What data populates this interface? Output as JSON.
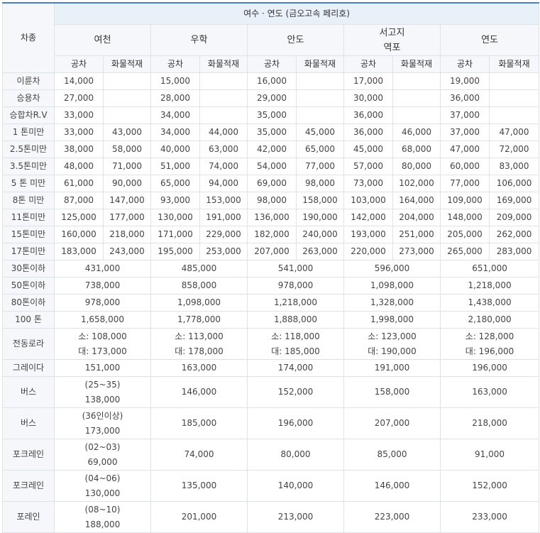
{
  "table": {
    "corner_label": "차종",
    "region_title": "여수 · 연도 (금오고속 페리호)",
    "ports": [
      {
        "lines": [
          "여천"
        ]
      },
      {
        "lines": [
          "우학"
        ]
      },
      {
        "lines": [
          "안도"
        ]
      },
      {
        "lines": [
          "서고지",
          "역포"
        ]
      },
      {
        "lines": [
          "연도"
        ]
      }
    ],
    "sub_headers": [
      "공차",
      "화물적재"
    ],
    "split_rows": [
      {
        "label": "이륜차",
        "values": [
          [
            "14,000",
            ""
          ],
          [
            "15,000",
            ""
          ],
          [
            "16,000",
            ""
          ],
          [
            "17,000",
            ""
          ],
          [
            "19,000",
            ""
          ]
        ]
      },
      {
        "label": "승용차",
        "values": [
          [
            "27,000",
            ""
          ],
          [
            "28,000",
            ""
          ],
          [
            "29,000",
            ""
          ],
          [
            "30,000",
            ""
          ],
          [
            "36,000",
            ""
          ]
        ]
      },
      {
        "label": "승합차R.V",
        "values": [
          [
            "33,000",
            ""
          ],
          [
            "34,000",
            ""
          ],
          [
            "35,000",
            ""
          ],
          [
            "36,000",
            ""
          ],
          [
            "37,000",
            ""
          ]
        ]
      },
      {
        "label": "1 톤미만",
        "values": [
          [
            "33,000",
            "43,000"
          ],
          [
            "34,000",
            "44,000"
          ],
          [
            "35,000",
            "45,000"
          ],
          [
            "36,000",
            "46,000"
          ],
          [
            "37,000",
            "47,000"
          ]
        ]
      },
      {
        "label": "2.5톤미만",
        "values": [
          [
            "38,000",
            "58,000"
          ],
          [
            "40,000",
            "63,000"
          ],
          [
            "42,000",
            "65,000"
          ],
          [
            "45,000",
            "68,000"
          ],
          [
            "47,000",
            "72,000"
          ]
        ]
      },
      {
        "label": "3.5톤미만",
        "values": [
          [
            "48,000",
            "71,000"
          ],
          [
            "51,000",
            "74,000"
          ],
          [
            "54,000",
            "77,000"
          ],
          [
            "57,000",
            "80,000"
          ],
          [
            "60,000",
            "83,000"
          ]
        ]
      },
      {
        "label": "5 톤 미만",
        "values": [
          [
            "61,000",
            "90,000"
          ],
          [
            "65,000",
            "94,000"
          ],
          [
            "69,000",
            "98,000"
          ],
          [
            "73,000",
            "102,000"
          ],
          [
            "77,000",
            "106,000"
          ]
        ]
      },
      {
        "label": "8톤 미만",
        "values": [
          [
            "87,000",
            "147,000"
          ],
          [
            "93,000",
            "153,000"
          ],
          [
            "98,000",
            "158,000"
          ],
          [
            "103,000",
            "164,000"
          ],
          [
            "109,000",
            "169,000"
          ]
        ]
      },
      {
        "label": "11톤미만",
        "values": [
          [
            "125,000",
            "177,000"
          ],
          [
            "130,000",
            "191,000"
          ],
          [
            "136,000",
            "190,000"
          ],
          [
            "142,000",
            "204,000"
          ],
          [
            "148,000",
            "209,000"
          ]
        ]
      },
      {
        "label": "15톤미만",
        "values": [
          [
            "160,000",
            "218,000"
          ],
          [
            "171,000",
            "229,000"
          ],
          [
            "182,000",
            "240,000"
          ],
          [
            "193,000",
            "251,000"
          ],
          [
            "205,000",
            "262,000"
          ]
        ]
      },
      {
        "label": "17톤미만",
        "values": [
          [
            "183,000",
            "243,000"
          ],
          [
            "195,000",
            "253,000"
          ],
          [
            "207,000",
            "263,000"
          ],
          [
            "220,000",
            "273,000"
          ],
          [
            "265,000",
            "283,000"
          ]
        ]
      }
    ],
    "merged_rows": [
      {
        "label": "30톤이하",
        "tall": false,
        "values": [
          [
            "431,000"
          ],
          [
            "485,000"
          ],
          [
            "541,000"
          ],
          [
            "596,000"
          ],
          [
            "651,000"
          ]
        ]
      },
      {
        "label": "50톤이하",
        "tall": false,
        "values": [
          [
            "738,000"
          ],
          [
            "858,000"
          ],
          [
            "978,000"
          ],
          [
            "1,098,000"
          ],
          [
            "1,218,000"
          ]
        ]
      },
      {
        "label": "80톤이하",
        "tall": false,
        "values": [
          [
            "978,000"
          ],
          [
            "1,098,000"
          ],
          [
            "1,218,000"
          ],
          [
            "1,328,000"
          ],
          [
            "1,438,000"
          ]
        ]
      },
      {
        "label": "100 톤",
        "tall": false,
        "values": [
          [
            "1,658,000"
          ],
          [
            "1,778,000"
          ],
          [
            "1,888,000"
          ],
          [
            "1,998,000"
          ],
          [
            "2,180,000"
          ]
        ]
      },
      {
        "label": "전동로라",
        "tall": true,
        "values": [
          [
            "소: 108,000",
            "대: 173,000"
          ],
          [
            "소: 113,000",
            "대: 178,000"
          ],
          [
            "소: 118,000",
            "대: 185,000"
          ],
          [
            "소: 123,000",
            "대: 190,000"
          ],
          [
            "소: 128,000",
            "대: 196,000"
          ]
        ]
      },
      {
        "label": "그레이다",
        "tall": false,
        "values": [
          [
            "151,000"
          ],
          [
            "163,000"
          ],
          [
            "174,000"
          ],
          [
            "191,000"
          ],
          [
            "196,000"
          ]
        ]
      },
      {
        "label": "버스",
        "tall": true,
        "values": [
          [
            "(25~35)",
            "138,000"
          ],
          [
            "146,000"
          ],
          [
            "152,000"
          ],
          [
            "158,000"
          ],
          [
            "163,000"
          ]
        ]
      },
      {
        "label": "버스",
        "tall": true,
        "values": [
          [
            "(36인이상)",
            "173,000"
          ],
          [
            "185,000"
          ],
          [
            "196,000"
          ],
          [
            "207,000"
          ],
          [
            "218,000"
          ]
        ]
      },
      {
        "label": "포크레인",
        "tall": true,
        "values": [
          [
            "(02~03)",
            "69,000"
          ],
          [
            "74,000"
          ],
          [
            "80,000"
          ],
          [
            "85,000"
          ],
          [
            "91,000"
          ]
        ]
      },
      {
        "label": "포크레인",
        "tall": true,
        "values": [
          [
            "(04~06)",
            "130,000"
          ],
          [
            "135,000"
          ],
          [
            "140,000"
          ],
          [
            "146,000"
          ],
          [
            "152,000"
          ]
        ]
      },
      {
        "label": "포레인",
        "tall": true,
        "values": [
          [
            "(08~10)",
            "188,000"
          ],
          [
            "201,000"
          ],
          [
            "213,000"
          ],
          [
            "223,000"
          ],
          [
            "233,000"
          ]
        ]
      }
    ]
  }
}
